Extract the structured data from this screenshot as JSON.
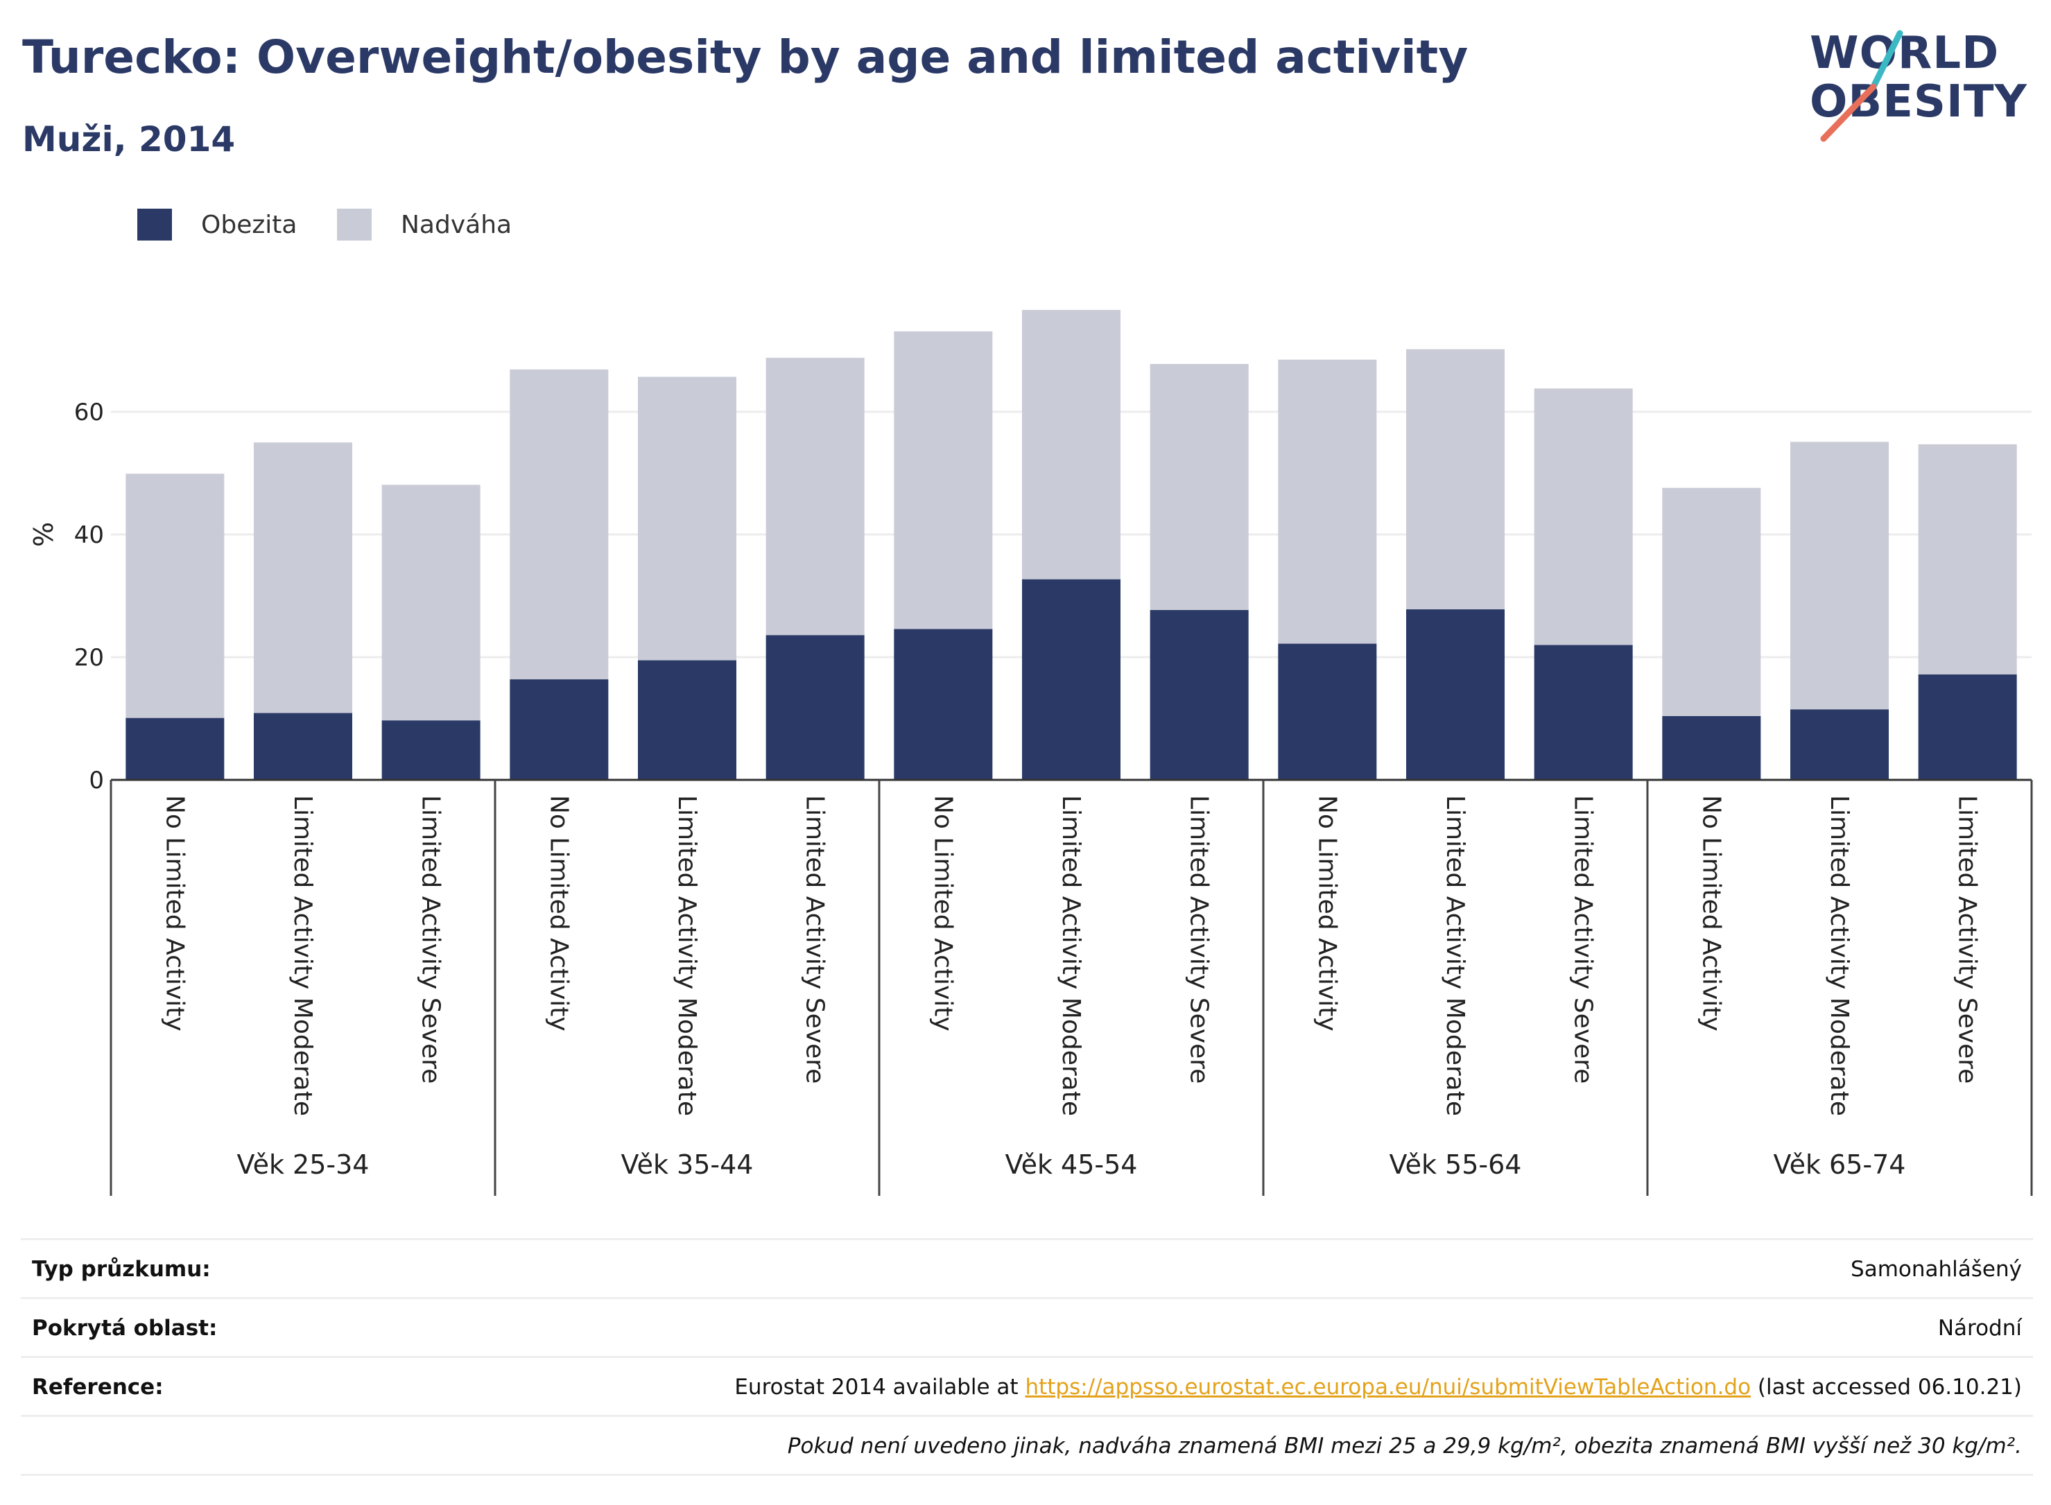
{
  "header": {
    "title": "Turecko: Overweight/obesity by age and limited activity",
    "subtitle": "Muži, 2014"
  },
  "logo": {
    "line1": "WORLD",
    "line2": "OBESITY",
    "colors": {
      "text": "#2b3966",
      "slash_top": "#3ab8c3",
      "slash_bottom": "#e8705a"
    }
  },
  "legend": [
    {
      "label": "Obezita",
      "color": "#2b3966"
    },
    {
      "label": "Nadváha",
      "color": "#c9cbd7"
    }
  ],
  "chart_data": {
    "type": "bar",
    "stacked": true,
    "ylabel": "%",
    "ylim": [
      0,
      80
    ],
    "yticks": [
      0,
      20,
      40,
      60
    ],
    "grid": true,
    "legend_position": "top-left",
    "groups": [
      "Věk 25-34",
      "Věk 35-44",
      "Věk 45-54",
      "Věk 55-64",
      "Věk 65-74"
    ],
    "categories": [
      "No Limited Activity",
      "Limited Activity Moderate",
      "Limited Activity Severe",
      "No Limited Activity",
      "Limited Activity Moderate",
      "Limited Activity Severe",
      "No Limited Activity",
      "Limited Activity Moderate",
      "Limited Activity Severe",
      "No Limited Activity",
      "Limited Activity Moderate",
      "Limited Activity Severe",
      "No Limited Activity",
      "Limited Activity Moderate",
      "Limited Activity Severe"
    ],
    "series": [
      {
        "name": "Obezita",
        "color": "#2b3966",
        "values": [
          10.1,
          10.9,
          9.7,
          16.4,
          19.5,
          23.6,
          24.6,
          32.7,
          27.7,
          22.2,
          27.8,
          22.0,
          10.4,
          11.5,
          17.2
        ]
      },
      {
        "name": "Nadváha",
        "color": "#c9cbd7",
        "values": [
          39.8,
          44.1,
          38.4,
          50.5,
          46.2,
          45.2,
          48.5,
          43.9,
          40.1,
          46.3,
          42.4,
          41.8,
          37.2,
          43.6,
          37.5
        ]
      }
    ]
  },
  "info": [
    {
      "label": "Typ průzkumu:",
      "value": "Samonahlášený"
    },
    {
      "label": "Pokrytá oblast:",
      "value": "Národní"
    }
  ],
  "reference": {
    "label": "Reference:",
    "prefix": "Eurostat 2014 available at ",
    "link": "https://appsso.eurostat.ec.europa.eu/nui/submitViewTableAction.do",
    "suffix": " (last accessed 06.10.21)"
  },
  "note": "Pokud není uvedeno jinak, nadváha znamená BMI mezi 25 a 29,9 kg/m², obezita znamená BMI vyšší než 30 kg/m²."
}
